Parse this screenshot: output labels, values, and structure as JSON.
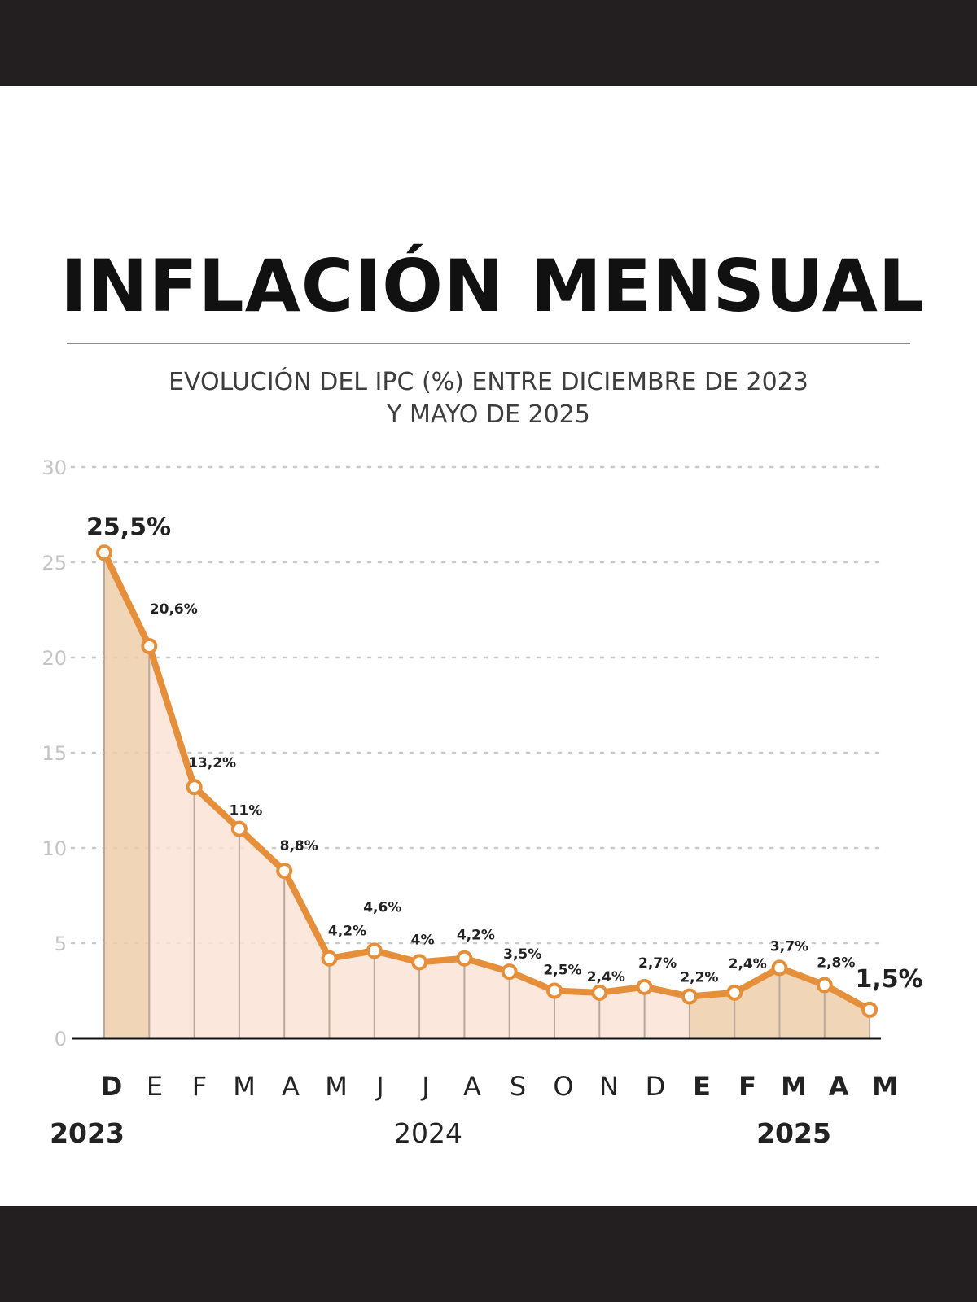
{
  "header": {
    "title": "INFLACIÓN MENSUAL",
    "subtitle_line1": "EVOLUCIÓN DEL IPC (%) ENTRE DICIEMBRE DE 2023",
    "subtitle_line2": "Y MAYO DE 2025"
  },
  "colors": {
    "line": "#e58f3a",
    "area_dark": "#efceaa",
    "area_light": "#fae3d6",
    "frame": "#231f20"
  },
  "chart_data": {
    "type": "area",
    "title": "INFLACIÓN MENSUAL",
    "subtitle": "EVOLUCIÓN DEL IPC (%) ENTRE DICIEMBRE DE 2023 Y MAYO DE 2025",
    "xlabel": "",
    "ylabel": "",
    "ylim": [
      0,
      30
    ],
    "yticks": [
      0,
      5,
      10,
      15,
      20,
      25,
      30
    ],
    "ytick_labels": [
      "0",
      "5",
      "10",
      "15",
      "20",
      "25",
      "30"
    ],
    "grid": true,
    "categories": [
      "D",
      "E",
      "F",
      "M",
      "A",
      "M",
      "J",
      "J",
      "A",
      "S",
      "O",
      "N",
      "D",
      "E",
      "F",
      "M",
      "A",
      "M"
    ],
    "category_bold": [
      true,
      false,
      false,
      false,
      false,
      false,
      false,
      false,
      false,
      false,
      false,
      false,
      false,
      true,
      true,
      true,
      true,
      true
    ],
    "values": [
      25.5,
      20.6,
      13.2,
      11,
      8.8,
      4.2,
      4.6,
      4,
      4.2,
      3.5,
      2.5,
      2.4,
      2.7,
      2.2,
      2.4,
      3.7,
      2.8,
      1.5
    ],
    "data_labels": [
      "25,5%",
      "20,6%",
      "13,2%",
      "11%",
      "8,8%",
      "4,2%",
      "4,6%",
      "4%",
      "4,2%",
      "3,5%",
      "2,5%",
      "2,4%",
      "2,7%",
      "2,2%",
      "2,4%",
      "3,7%",
      "2,8%",
      "1,5%"
    ],
    "years": [
      {
        "label": "2023",
        "bold": true
      },
      {
        "label": "2024",
        "bold": false
      },
      {
        "label": "2025",
        "bold": true
      }
    ]
  }
}
